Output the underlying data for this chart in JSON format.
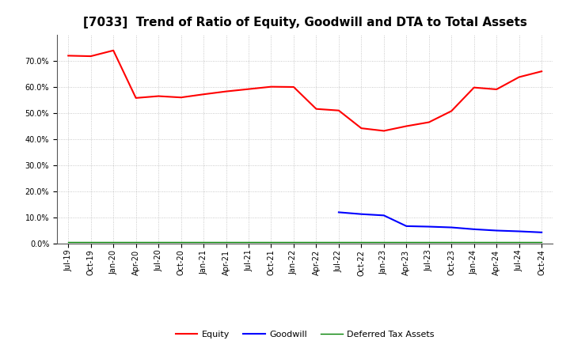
{
  "title": "[7033]  Trend of Ratio of Equity, Goodwill and DTA to Total Assets",
  "x_labels": [
    "Jul-19",
    "Oct-19",
    "Jan-20",
    "Apr-20",
    "Jul-20",
    "Oct-20",
    "Jan-21",
    "Apr-21",
    "Jul-21",
    "Oct-21",
    "Jan-22",
    "Apr-22",
    "Jul-22",
    "Oct-22",
    "Jan-23",
    "Apr-23",
    "Jul-23",
    "Oct-23",
    "Jan-24",
    "Apr-24",
    "Jul-24",
    "Oct-24"
  ],
  "equity": [
    0.72,
    0.718,
    0.74,
    0.558,
    0.565,
    0.56,
    0.572,
    0.583,
    0.592,
    0.601,
    0.6,
    0.516,
    0.51,
    0.442,
    0.432,
    0.45,
    0.465,
    0.508,
    0.598,
    0.591,
    0.638,
    0.66
  ],
  "goodwill": [
    null,
    null,
    null,
    null,
    null,
    null,
    null,
    null,
    null,
    null,
    null,
    null,
    0.12,
    0.113,
    0.108,
    0.067,
    0.065,
    0.062,
    0.055,
    0.05,
    0.047,
    0.043
  ],
  "dta": [
    0.005,
    0.005,
    0.005,
    0.005,
    0.005,
    0.005,
    0.005,
    0.005,
    0.005,
    0.005,
    0.005,
    0.005,
    0.005,
    0.005,
    0.005,
    0.005,
    0.005,
    0.005,
    0.005,
    0.005,
    0.005,
    0.005
  ],
  "equity_color": "#FF0000",
  "goodwill_color": "#0000FF",
  "dta_color": "#008000",
  "ylim": [
    0.0,
    0.8
  ],
  "yticks": [
    0.0,
    0.1,
    0.2,
    0.3,
    0.4,
    0.5,
    0.6,
    0.7
  ],
  "background_color": "#FFFFFF",
  "grid_color": "#BBBBBB",
  "title_fontsize": 11,
  "tick_fontsize": 7,
  "legend_fontsize": 8
}
